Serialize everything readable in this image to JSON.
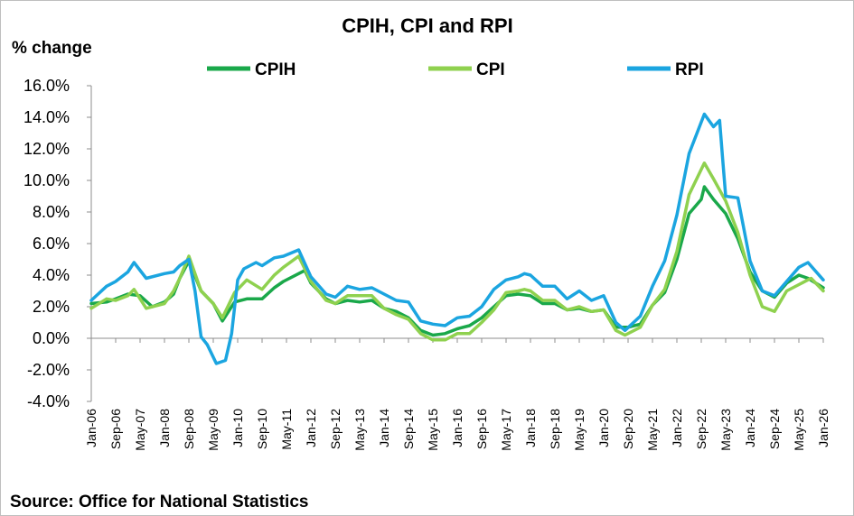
{
  "chart_data": {
    "type": "line",
    "title": "CPIH, CPI and RPI",
    "ylabel": "% change",
    "xlabel": "",
    "source": "Source: Office for National Statistics",
    "ylim": [
      -4,
      16
    ],
    "y_ticks": [
      "-4.0%",
      "-2.0%",
      "0.0%",
      "2.0%",
      "4.0%",
      "6.0%",
      "8.0%",
      "10.0%",
      "12.0%",
      "14.0%",
      "16.0%"
    ],
    "x_tick_labels": [
      "Jan-06",
      "Sep-06",
      "May-07",
      "Jan-08",
      "Sep-08",
      "May-09",
      "Jan-10",
      "Sep-10",
      "May-11",
      "Jan-12",
      "Sep-12",
      "May-13",
      "Jan-14",
      "Sep-14",
      "May-15",
      "Jan-16",
      "Sep-16",
      "May-17",
      "Jan-18",
      "Sep-18",
      "May-19",
      "Jan-20",
      "Sep-20",
      "May-21",
      "Jan-22",
      "Sep-22",
      "May-23",
      "Jan-24",
      "Sep-24",
      "May-25",
      "Jan-26"
    ],
    "grid": false,
    "legend_position": "top",
    "x_start": "Jan-06",
    "x_end": "Jan-26",
    "series": [
      {
        "name": "CPIH",
        "color": "#1aa84a",
        "points": [
          [
            "Jan-06",
            2.2
          ],
          [
            "Jun-06",
            2.3
          ],
          [
            "Sep-06",
            2.5
          ],
          [
            "Jan-07",
            2.8
          ],
          [
            "May-07",
            2.7
          ],
          [
            "Sep-07",
            2.0
          ],
          [
            "Jan-08",
            2.3
          ],
          [
            "Apr-08",
            2.8
          ],
          [
            "Jun-08",
            3.8
          ],
          [
            "Sep-08",
            4.9
          ],
          [
            "Jan-09",
            3.0
          ],
          [
            "May-09",
            2.2
          ],
          [
            "Aug-09",
            1.1
          ],
          [
            "Dec-09",
            2.3
          ],
          [
            "Apr-10",
            2.5
          ],
          [
            "Sep-10",
            2.5
          ],
          [
            "Jan-11",
            3.2
          ],
          [
            "Apr-11",
            3.6
          ],
          [
            "Sep-11",
            4.1
          ],
          [
            "Nov-11",
            4.3
          ],
          [
            "Jan-12",
            3.5
          ],
          [
            "Jun-12",
            2.5
          ],
          [
            "Sep-12",
            2.2
          ],
          [
            "Jan-13",
            2.4
          ],
          [
            "May-13",
            2.3
          ],
          [
            "Sep-13",
            2.4
          ],
          [
            "Jan-14",
            1.9
          ],
          [
            "May-14",
            1.7
          ],
          [
            "Sep-14",
            1.3
          ],
          [
            "Jan-15",
            0.5
          ],
          [
            "May-15",
            0.2
          ],
          [
            "Sep-15",
            0.3
          ],
          [
            "Jan-16",
            0.6
          ],
          [
            "May-16",
            0.8
          ],
          [
            "Sep-16",
            1.3
          ],
          [
            "Jan-17",
            2.0
          ],
          [
            "May-17",
            2.7
          ],
          [
            "Sep-17",
            2.8
          ],
          [
            "Jan-18",
            2.7
          ],
          [
            "May-18",
            2.2
          ],
          [
            "Sep-18",
            2.2
          ],
          [
            "Jan-19",
            1.8
          ],
          [
            "May-19",
            1.9
          ],
          [
            "Sep-19",
            1.7
          ],
          [
            "Jan-20",
            1.8
          ],
          [
            "May-20",
            0.7
          ],
          [
            "Sep-20",
            0.7
          ],
          [
            "Jan-21",
            0.9
          ],
          [
            "May-21",
            2.1
          ],
          [
            "Sep-21",
            2.9
          ],
          [
            "Jan-22",
            5.0
          ],
          [
            "May-22",
            7.9
          ],
          [
            "Sep-22",
            8.8
          ],
          [
            "Oct-22",
            9.6
          ],
          [
            "Jan-23",
            8.8
          ],
          [
            "May-23",
            7.9
          ],
          [
            "Sep-23",
            6.3
          ],
          [
            "Jan-24",
            4.2
          ],
          [
            "May-24",
            3.0
          ],
          [
            "Sep-24",
            2.6
          ],
          [
            "Jan-25",
            3.5
          ],
          [
            "May-25",
            4.0
          ],
          [
            "Aug-25",
            3.8
          ],
          [
            "Jan-26",
            3.2
          ]
        ]
      },
      {
        "name": "CPI",
        "color": "#8fd14f",
        "points": [
          [
            "Jan-06",
            1.9
          ],
          [
            "Jun-06",
            2.5
          ],
          [
            "Sep-06",
            2.4
          ],
          [
            "Jan-07",
            2.7
          ],
          [
            "Mar-07",
            3.1
          ],
          [
            "Jul-07",
            1.9
          ],
          [
            "Jan-08",
            2.2
          ],
          [
            "Apr-08",
            3.0
          ],
          [
            "Jun-08",
            3.8
          ],
          [
            "Sep-08",
            5.2
          ],
          [
            "Jan-09",
            3.0
          ],
          [
            "May-09",
            2.2
          ],
          [
            "Aug-09",
            1.3
          ],
          [
            "Dec-09",
            2.9
          ],
          [
            "Apr-10",
            3.7
          ],
          [
            "Sep-10",
            3.1
          ],
          [
            "Jan-11",
            4.0
          ],
          [
            "Apr-11",
            4.5
          ],
          [
            "Sep-11",
            5.2
          ],
          [
            "Jan-12",
            3.6
          ],
          [
            "Jun-12",
            2.4
          ],
          [
            "Sep-12",
            2.2
          ],
          [
            "Jan-13",
            2.7
          ],
          [
            "May-13",
            2.7
          ],
          [
            "Sep-13",
            2.7
          ],
          [
            "Jan-14",
            1.9
          ],
          [
            "May-14",
            1.5
          ],
          [
            "Sep-14",
            1.2
          ],
          [
            "Jan-15",
            0.3
          ],
          [
            "May-15",
            -0.1
          ],
          [
            "Sep-15",
            -0.1
          ],
          [
            "Jan-16",
            0.3
          ],
          [
            "May-16",
            0.3
          ],
          [
            "Sep-16",
            1.0
          ],
          [
            "Jan-17",
            1.8
          ],
          [
            "May-17",
            2.9
          ],
          [
            "Sep-17",
            3.0
          ],
          [
            "Nov-17",
            3.1
          ],
          [
            "Jan-18",
            3.0
          ],
          [
            "May-18",
            2.4
          ],
          [
            "Sep-18",
            2.4
          ],
          [
            "Jan-19",
            1.8
          ],
          [
            "May-19",
            2.0
          ],
          [
            "Sep-19",
            1.7
          ],
          [
            "Jan-20",
            1.8
          ],
          [
            "May-20",
            0.5
          ],
          [
            "Aug-20",
            0.2
          ],
          [
            "Jan-21",
            0.7
          ],
          [
            "May-21",
            2.1
          ],
          [
            "Sep-21",
            3.1
          ],
          [
            "Jan-22",
            5.5
          ],
          [
            "May-22",
            9.1
          ],
          [
            "Oct-22",
            11.1
          ],
          [
            "Jan-23",
            10.1
          ],
          [
            "May-23",
            8.7
          ],
          [
            "Sep-23",
            6.7
          ],
          [
            "Jan-24",
            4.0
          ],
          [
            "May-24",
            2.0
          ],
          [
            "Sep-24",
            1.7
          ],
          [
            "Jan-25",
            3.0
          ],
          [
            "May-25",
            3.4
          ],
          [
            "Sep-25",
            3.8
          ],
          [
            "Jan-26",
            3.0
          ]
        ]
      },
      {
        "name": "RPI",
        "color": "#1ba5e0",
        "points": [
          [
            "Jan-06",
            2.4
          ],
          [
            "Jun-06",
            3.3
          ],
          [
            "Sep-06",
            3.6
          ],
          [
            "Jan-07",
            4.2
          ],
          [
            "Mar-07",
            4.8
          ],
          [
            "Jul-07",
            3.8
          ],
          [
            "Jan-08",
            4.1
          ],
          [
            "Apr-08",
            4.2
          ],
          [
            "Jun-08",
            4.6
          ],
          [
            "Sep-08",
            5.0
          ],
          [
            "Nov-08",
            3.0
          ],
          [
            "Jan-09",
            0.1
          ],
          [
            "Mar-09",
            -0.4
          ],
          [
            "Jun-09",
            -1.6
          ],
          [
            "Sep-09",
            -1.4
          ],
          [
            "Nov-09",
            0.3
          ],
          [
            "Jan-10",
            3.7
          ],
          [
            "Mar-10",
            4.4
          ],
          [
            "Jul-10",
            4.8
          ],
          [
            "Sep-10",
            4.6
          ],
          [
            "Jan-11",
            5.1
          ],
          [
            "Apr-11",
            5.2
          ],
          [
            "Sep-11",
            5.6
          ],
          [
            "Jan-12",
            3.9
          ],
          [
            "Jun-12",
            2.8
          ],
          [
            "Sep-12",
            2.6
          ],
          [
            "Jan-13",
            3.3
          ],
          [
            "May-13",
            3.1
          ],
          [
            "Sep-13",
            3.2
          ],
          [
            "Jan-14",
            2.8
          ],
          [
            "May-14",
            2.4
          ],
          [
            "Sep-14",
            2.3
          ],
          [
            "Jan-15",
            1.1
          ],
          [
            "May-15",
            0.9
          ],
          [
            "Sep-15",
            0.8
          ],
          [
            "Jan-16",
            1.3
          ],
          [
            "May-16",
            1.4
          ],
          [
            "Sep-16",
            2.0
          ],
          [
            "Jan-17",
            3.1
          ],
          [
            "May-17",
            3.7
          ],
          [
            "Sep-17",
            3.9
          ],
          [
            "Nov-17",
            4.1
          ],
          [
            "Jan-18",
            4.0
          ],
          [
            "May-18",
            3.3
          ],
          [
            "Sep-18",
            3.3
          ],
          [
            "Jan-19",
            2.5
          ],
          [
            "May-19",
            3.0
          ],
          [
            "Sep-19",
            2.4
          ],
          [
            "Jan-20",
            2.7
          ],
          [
            "May-20",
            1.0
          ],
          [
            "Aug-20",
            0.5
          ],
          [
            "Jan-21",
            1.4
          ],
          [
            "May-21",
            3.3
          ],
          [
            "Sep-21",
            4.9
          ],
          [
            "Jan-22",
            7.8
          ],
          [
            "May-22",
            11.7
          ],
          [
            "Oct-22",
            14.2
          ],
          [
            "Jan-23",
            13.4
          ],
          [
            "Mar-23",
            13.8
          ],
          [
            "Apr-23",
            11.4
          ],
          [
            "May-23",
            9.0
          ],
          [
            "Sep-23",
            8.9
          ],
          [
            "Jan-24",
            4.9
          ],
          [
            "May-24",
            3.0
          ],
          [
            "Sep-24",
            2.7
          ],
          [
            "Jan-25",
            3.6
          ],
          [
            "May-25",
            4.5
          ],
          [
            "Aug-25",
            4.8
          ],
          [
            "Jan-26",
            3.7
          ]
        ]
      }
    ]
  }
}
